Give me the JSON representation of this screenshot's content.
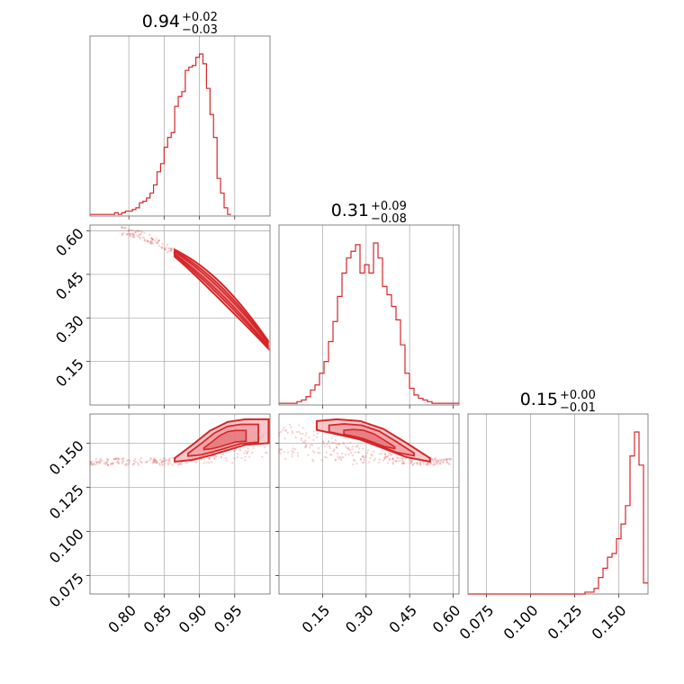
{
  "titles": {
    "p0": {
      "median": "0.94",
      "plus": "+0.02",
      "minus": "−0.03"
    },
    "p1": {
      "median": "0.31",
      "plus": "+0.09",
      "minus": "−0.08"
    },
    "p2": {
      "median": "0.15",
      "plus": "+0.00",
      "minus": "−0.01"
    }
  },
  "chart_data": {
    "type": "corner",
    "parameters": [
      {
        "range": [
          0.745,
          1.0
        ],
        "ticks": [
          0.8,
          0.85,
          0.9,
          0.95
        ],
        "tick_labels": [
          "0.80",
          "0.85",
          "0.90",
          "0.95"
        ]
      },
      {
        "range": [
          0.0,
          0.62
        ],
        "ticks": [
          0.15,
          0.3,
          0.45,
          0.6
        ],
        "tick_labels": [
          "0.15",
          "0.30",
          "0.45",
          "0.60"
        ]
      },
      {
        "range": [
          0.0645,
          0.1665
        ],
        "ticks": [
          0.075,
          0.1,
          0.125,
          0.15
        ],
        "tick_labels": [
          "0.075",
          "0.100",
          "0.125",
          "0.150"
        ]
      }
    ],
    "marginals": [
      {
        "bin_edges_start": 0.745,
        "bin_width": 0.005,
        "counts": [
          1,
          1,
          1,
          1,
          1,
          1,
          1,
          2,
          1,
          2,
          3,
          3,
          4,
          5,
          8,
          9,
          11,
          14,
          19,
          27,
          32,
          42,
          48,
          51,
          67,
          73,
          76,
          89,
          91,
          92,
          97,
          99,
          93,
          78,
          62,
          48,
          23,
          14,
          5,
          1
        ]
      },
      {
        "bin_edges_start": 0.0,
        "bin_width": 0.0155,
        "counts": [
          1,
          1,
          1,
          1,
          2,
          3,
          5,
          9,
          12,
          19,
          26,
          38,
          50,
          65,
          79,
          88,
          92,
          96,
          79,
          84,
          79,
          97,
          88,
          71,
          66,
          59,
          51,
          36,
          19,
          10,
          6,
          4,
          3,
          2,
          1,
          1,
          1,
          1,
          1,
          1
        ]
      },
      {
        "bin_edges_start": 0.0645,
        "bin_width": 0.00255,
        "counts": [
          0,
          0,
          0,
          0,
          0,
          0,
          0,
          0,
          0,
          0,
          0,
          0,
          0,
          0,
          0,
          0,
          0,
          0,
          0,
          0,
          0,
          0,
          0,
          0,
          0,
          0,
          1,
          1,
          3,
          9,
          14,
          20,
          22,
          30,
          38,
          48,
          75,
          88,
          70,
          6
        ]
      }
    ],
    "panels_2d": [
      {
        "x_param": 0,
        "y_param": 1
      },
      {
        "x_param": 0,
        "y_param": 2
      },
      {
        "x_param": 1,
        "y_param": 2
      }
    ],
    "grid": true,
    "color": "#d62728"
  }
}
